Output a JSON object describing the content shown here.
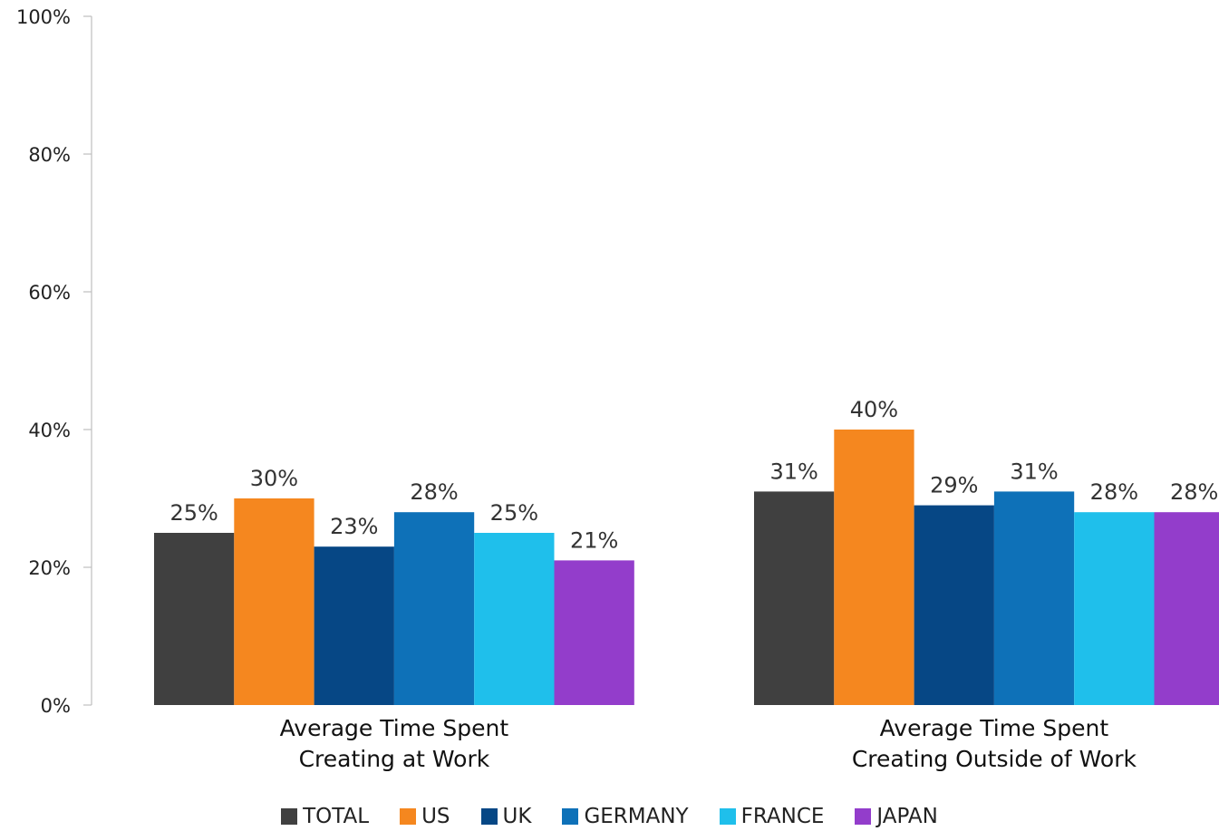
{
  "chart_data": {
    "type": "bar",
    "categories": [
      [
        "Average Time Spent",
        "Creating at Work"
      ],
      [
        "Average Time Spent",
        "Creating Outside of Work"
      ]
    ],
    "series": [
      {
        "name": "TOTAL",
        "color": "#404040",
        "values": [
          25,
          31
        ],
        "labels": [
          "25%",
          "31%"
        ]
      },
      {
        "name": "US",
        "color": "#f5871f",
        "values": [
          30,
          40
        ],
        "labels": [
          "30%",
          "40%"
        ]
      },
      {
        "name": "UK",
        "color": "#064785",
        "values": [
          23,
          29
        ],
        "labels": [
          "23%",
          "29%"
        ]
      },
      {
        "name": "GERMANY",
        "color": "#0e71b8",
        "values": [
          28,
          31
        ],
        "labels": [
          "28%",
          "31%"
        ]
      },
      {
        "name": "FRANCE",
        "color": "#1fbfeb",
        "values": [
          25,
          28
        ],
        "labels": [
          "25%",
          "28%"
        ]
      },
      {
        "name": "JAPAN",
        "color": "#933dcb",
        "values": [
          21,
          28
        ],
        "labels": [
          "21%",
          "28%"
        ]
      }
    ],
    "y_ticks": [
      0,
      20,
      40,
      60,
      80,
      100
    ],
    "y_tick_labels": [
      "0%",
      "20%",
      "40%",
      "60%",
      "80%",
      "100%"
    ],
    "ylim": [
      0,
      100
    ],
    "grid": false,
    "legend_position": "bottom-center"
  }
}
